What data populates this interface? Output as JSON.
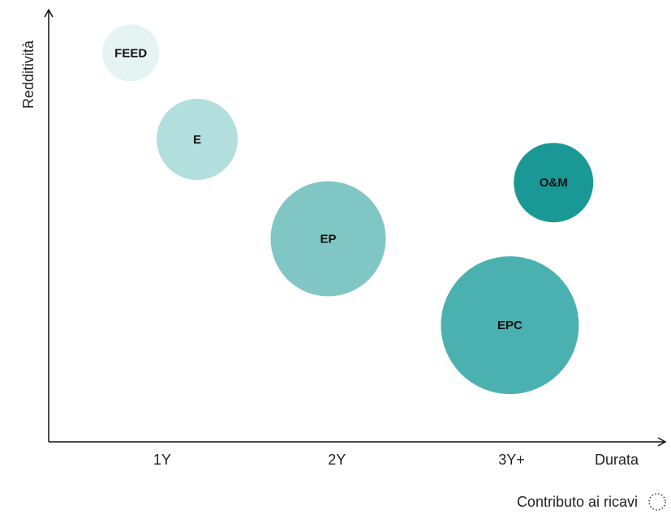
{
  "chart_data": {
    "type": "bubble",
    "y_label": "Redditività",
    "x_label": "Durata",
    "legend_label": "Contributo ai ricavi",
    "labels": [
      "FEED",
      "E",
      "EP",
      "EPC",
      "O&M"
    ],
    "x": [
      0.82,
      1.2,
      1.95,
      2.99,
      3.24
    ],
    "values": [
      9.0,
      7.0,
      4.7,
      2.7,
      6.0
    ],
    "sizes": [
      3.5,
      5.0,
      7.1,
      8.5,
      4.9
    ],
    "colors": [
      "#e6f3f3",
      "#b2dede",
      "#80c6c4",
      "#4bb1b0",
      "#1a9896"
    ],
    "xlim": [
      0.35,
      3.88
    ],
    "ylim": [
      0,
      10
    ],
    "xticks": [
      {
        "value": 1,
        "label": "1Y"
      },
      {
        "value": 2,
        "label": "2Y"
      },
      {
        "value": 3,
        "label": "3Y+"
      }
    ]
  }
}
